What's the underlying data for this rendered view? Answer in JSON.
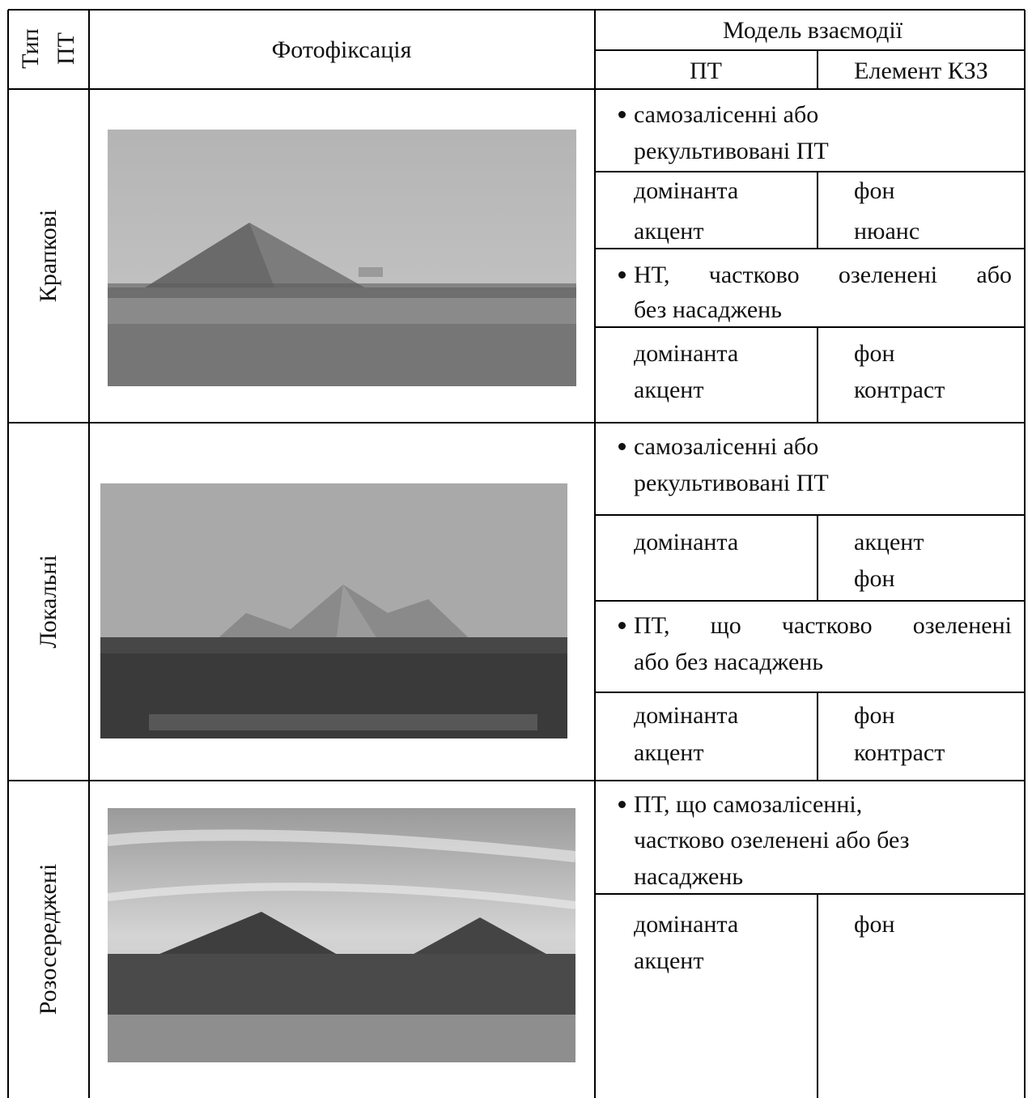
{
  "header": {
    "type": [
      "Тип",
      "ПТ"
    ],
    "photo": "Фотофіксація",
    "model": "Модель взаємодії",
    "pt": "ПТ",
    "element": "Елемент КЗЗ"
  },
  "rows": [
    {
      "type": "Крапкові",
      "groups": [
        {
          "condition": [
            "самозалісенні або",
            "рекультивовані ПТ"
          ],
          "pt": [
            "домінанта",
            "акцент"
          ],
          "element": [
            "фон",
            "нюанс"
          ]
        },
        {
          "condition": [
            "НТ, частково озеленені або",
            "без насаджень"
          ],
          "pt": [
            "домінанта",
            "акцент"
          ],
          "element": [
            "фон",
            "контраст"
          ]
        }
      ]
    },
    {
      "type": "Локальні",
      "groups": [
        {
          "condition": [
            "самозалісенні або",
            "рекультивовані ПТ"
          ],
          "pt": [
            "домінанта"
          ],
          "element": [
            "акцент",
            "фон"
          ]
        },
        {
          "condition": [
            "ПТ, що частково озеленені",
            "або без насаджень"
          ],
          "pt": [
            "домінанта",
            "акцент"
          ],
          "element": [
            "фон",
            "контраст"
          ]
        }
      ]
    },
    {
      "type": "Розосереджені",
      "groups": [
        {
          "condition": [
            "ПТ, що самозалісенні,",
            "частково озеленені або без",
            "насаджень"
          ],
          "pt": [
            "домінанта",
            "акцент"
          ],
          "element": [
            "фон"
          ]
        }
      ]
    }
  ]
}
